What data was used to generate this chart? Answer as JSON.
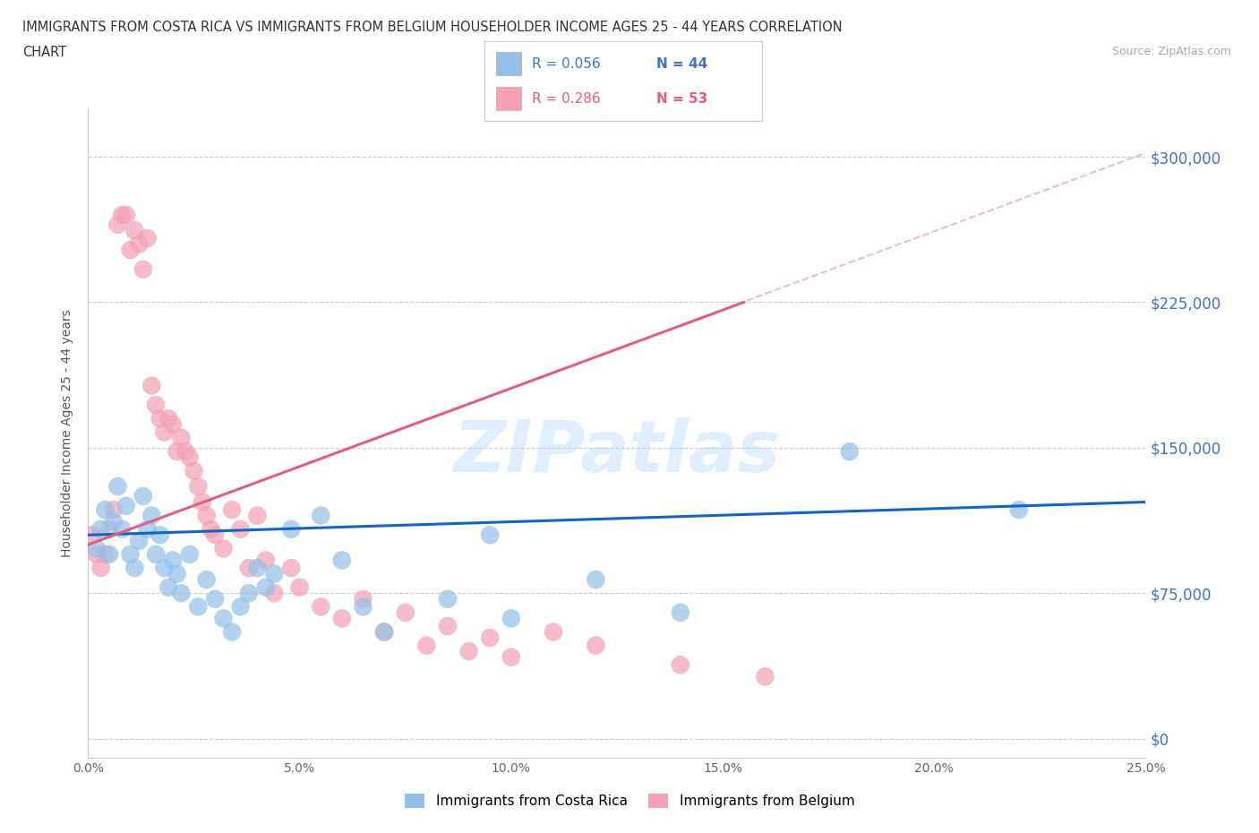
{
  "title_line1": "IMMIGRANTS FROM COSTA RICA VS IMMIGRANTS FROM BELGIUM HOUSEHOLDER INCOME AGES 25 - 44 YEARS CORRELATION",
  "title_line2": "CHART",
  "source_text": "Source: ZipAtlas.com",
  "ylabel": "Householder Income Ages 25 - 44 years",
  "xlim": [
    0.0,
    0.25
  ],
  "ylim": [
    -10000,
    325000
  ],
  "yticks": [
    0,
    75000,
    150000,
    225000,
    300000
  ],
  "ytick_labels": [
    "$0",
    "$75,000",
    "$150,000",
    "$225,000",
    "$300,000"
  ],
  "xticks": [
    0.0,
    0.05,
    0.1,
    0.15,
    0.2,
    0.25
  ],
  "xtick_labels": [
    "0.0%",
    "5.0%",
    "10.0%",
    "15.0%",
    "20.0%",
    "25.0%"
  ],
  "watermark": "ZIPatlas",
  "legend_R_costa_rica": "R = 0.056",
  "legend_N_costa_rica": "N = 44",
  "legend_R_belgium": "R = 0.286",
  "legend_N_belgium": "N = 53",
  "color_costa_rica": "#92C0E8",
  "color_belgium": "#F4A0B5",
  "line_color_costa_rica": "#1565C0",
  "line_color_belgium": "#E06080",
  "dashed_color": "#E8B0C0",
  "costa_rica_line_x0": 0.0,
  "costa_rica_line_y0": 105000,
  "costa_rica_line_x1": 0.25,
  "costa_rica_line_y1": 122000,
  "belgium_line_x0": 0.0,
  "belgium_line_y0": 100000,
  "belgium_line_x1": 0.155,
  "belgium_line_y1": 225000,
  "dashed_line_x0": 0.0,
  "dashed_line_y0": 100000,
  "dashed_line_x1": 0.25,
  "dashed_line_y1": 302000,
  "cr_points": [
    [
      0.002,
      98000
    ],
    [
      0.003,
      108000
    ],
    [
      0.004,
      118000
    ],
    [
      0.005,
      95000
    ],
    [
      0.006,
      112000
    ],
    [
      0.007,
      130000
    ],
    [
      0.008,
      108000
    ],
    [
      0.009,
      120000
    ],
    [
      0.01,
      95000
    ],
    [
      0.011,
      88000
    ],
    [
      0.012,
      102000
    ],
    [
      0.013,
      125000
    ],
    [
      0.014,
      108000
    ],
    [
      0.015,
      115000
    ],
    [
      0.016,
      95000
    ],
    [
      0.017,
      105000
    ],
    [
      0.018,
      88000
    ],
    [
      0.019,
      78000
    ],
    [
      0.02,
      92000
    ],
    [
      0.021,
      85000
    ],
    [
      0.022,
      75000
    ],
    [
      0.024,
      95000
    ],
    [
      0.026,
      68000
    ],
    [
      0.028,
      82000
    ],
    [
      0.03,
      72000
    ],
    [
      0.032,
      62000
    ],
    [
      0.034,
      55000
    ],
    [
      0.036,
      68000
    ],
    [
      0.038,
      75000
    ],
    [
      0.04,
      88000
    ],
    [
      0.042,
      78000
    ],
    [
      0.044,
      85000
    ],
    [
      0.048,
      108000
    ],
    [
      0.055,
      115000
    ],
    [
      0.06,
      92000
    ],
    [
      0.065,
      68000
    ],
    [
      0.07,
      55000
    ],
    [
      0.085,
      72000
    ],
    [
      0.095,
      105000
    ],
    [
      0.1,
      62000
    ],
    [
      0.12,
      82000
    ],
    [
      0.14,
      65000
    ],
    [
      0.18,
      148000
    ],
    [
      0.22,
      118000
    ]
  ],
  "bel_points": [
    [
      0.001,
      105000
    ],
    [
      0.002,
      95000
    ],
    [
      0.003,
      88000
    ],
    [
      0.004,
      95000
    ],
    [
      0.005,
      108000
    ],
    [
      0.006,
      118000
    ],
    [
      0.007,
      265000
    ],
    [
      0.008,
      270000
    ],
    [
      0.009,
      270000
    ],
    [
      0.01,
      252000
    ],
    [
      0.011,
      262000
    ],
    [
      0.012,
      255000
    ],
    [
      0.013,
      242000
    ],
    [
      0.014,
      258000
    ],
    [
      0.015,
      182000
    ],
    [
      0.016,
      172000
    ],
    [
      0.017,
      165000
    ],
    [
      0.018,
      158000
    ],
    [
      0.019,
      165000
    ],
    [
      0.02,
      162000
    ],
    [
      0.021,
      148000
    ],
    [
      0.022,
      155000
    ],
    [
      0.023,
      148000
    ],
    [
      0.024,
      145000
    ],
    [
      0.025,
      138000
    ],
    [
      0.026,
      130000
    ],
    [
      0.027,
      122000
    ],
    [
      0.028,
      115000
    ],
    [
      0.029,
      108000
    ],
    [
      0.03,
      105000
    ],
    [
      0.032,
      98000
    ],
    [
      0.034,
      118000
    ],
    [
      0.036,
      108000
    ],
    [
      0.038,
      88000
    ],
    [
      0.04,
      115000
    ],
    [
      0.042,
      92000
    ],
    [
      0.044,
      75000
    ],
    [
      0.048,
      88000
    ],
    [
      0.05,
      78000
    ],
    [
      0.055,
      68000
    ],
    [
      0.06,
      62000
    ],
    [
      0.065,
      72000
    ],
    [
      0.07,
      55000
    ],
    [
      0.075,
      65000
    ],
    [
      0.08,
      48000
    ],
    [
      0.085,
      58000
    ],
    [
      0.09,
      45000
    ],
    [
      0.095,
      52000
    ],
    [
      0.1,
      42000
    ],
    [
      0.11,
      55000
    ],
    [
      0.12,
      48000
    ],
    [
      0.14,
      38000
    ],
    [
      0.16,
      32000
    ]
  ]
}
